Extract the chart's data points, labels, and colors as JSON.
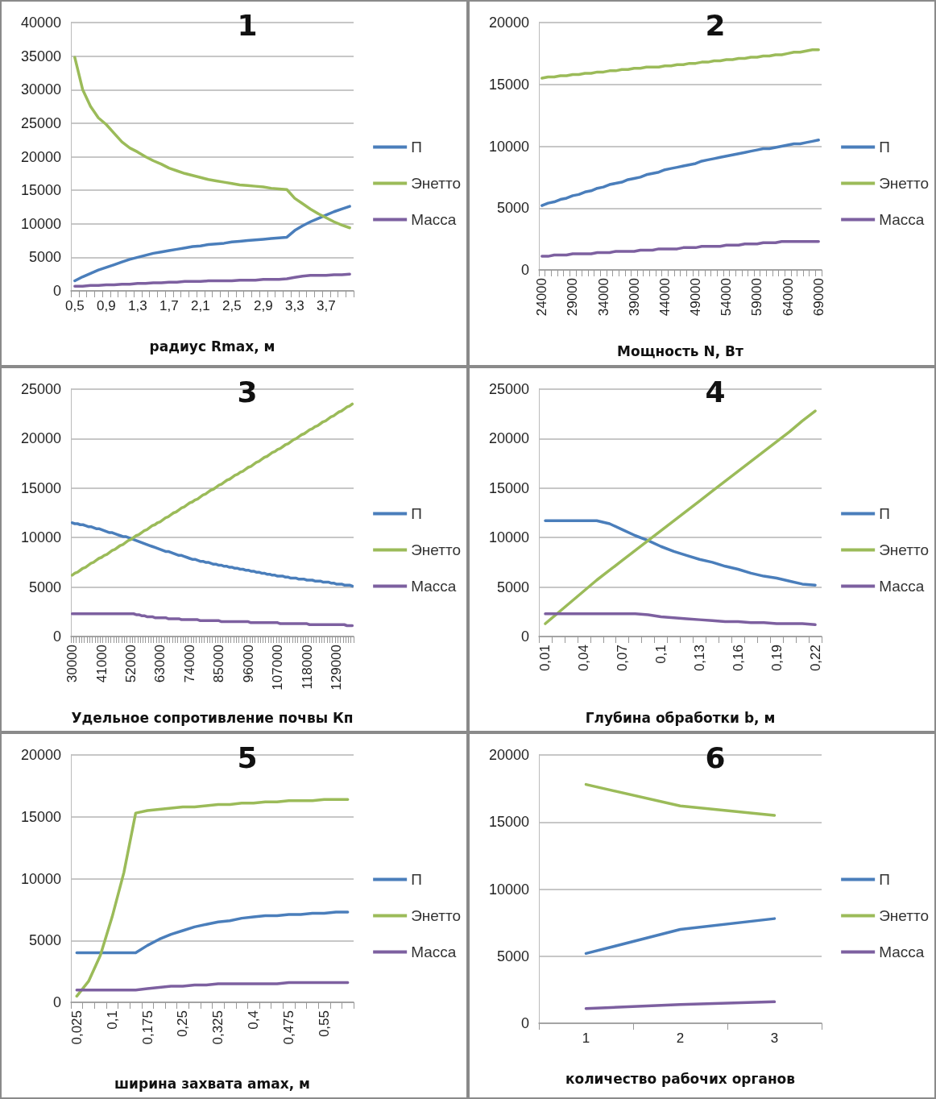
{
  "chart_data": [
    {
      "type": "line",
      "title": "1",
      "xlabel": "радиус Rmax, м",
      "categories": [
        "0,5",
        null,
        null,
        null,
        "0,9",
        null,
        null,
        null,
        "1,3",
        null,
        null,
        null,
        "1,7",
        null,
        null,
        null,
        "2,1",
        null,
        null,
        null,
        "2,5",
        null,
        null,
        null,
        "2,9",
        null,
        null,
        null,
        "3,3",
        null,
        null,
        null,
        "3,7",
        null,
        null,
        null
      ],
      "ylim": [
        0,
        40000
      ],
      "yticks": [
        0,
        5000,
        10000,
        15000,
        20000,
        25000,
        30000,
        35000,
        40000
      ],
      "grid": "y",
      "legend": "right",
      "marker": "none",
      "line_style": "solid",
      "series": [
        {
          "name": "П",
          "color": "#4a7ebb",
          "values": [
            1500,
            2100,
            2600,
            3100,
            3500,
            3900,
            4300,
            4700,
            5000,
            5300,
            5600,
            5800,
            6000,
            6200,
            6400,
            6600,
            6700,
            6900,
            7000,
            7100,
            7300,
            7400,
            7500,
            7600,
            7700,
            7800,
            7900,
            8000,
            9000,
            9700,
            10300,
            10800,
            11300,
            11800,
            12200,
            12600
          ]
        },
        {
          "name": "Энетто",
          "color": "#9bbb59",
          "values": [
            34800,
            30000,
            27500,
            25800,
            24800,
            23500,
            22200,
            21300,
            20700,
            20000,
            19400,
            18900,
            18300,
            17900,
            17500,
            17200,
            16900,
            16600,
            16400,
            16200,
            16000,
            15800,
            15700,
            15600,
            15500,
            15300,
            15200,
            15100,
            13800,
            13000,
            12200,
            11500,
            10900,
            10300,
            9800,
            9400
          ]
        },
        {
          "name": "Масса",
          "color": "#7d60a0",
          "values": [
            700,
            700,
            800,
            800,
            900,
            900,
            1000,
            1000,
            1100,
            1100,
            1200,
            1200,
            1300,
            1300,
            1400,
            1400,
            1400,
            1500,
            1500,
            1500,
            1500,
            1600,
            1600,
            1600,
            1700,
            1700,
            1700,
            1800,
            2000,
            2200,
            2300,
            2300,
            2300,
            2400,
            2400,
            2500
          ]
        }
      ]
    },
    {
      "type": "line",
      "title": "2",
      "xlabel": "Мощность N, Вт",
      "categories": [
        "24000",
        null,
        null,
        null,
        null,
        "29000",
        null,
        null,
        null,
        null,
        "34000",
        null,
        null,
        null,
        null,
        "39000",
        null,
        null,
        null,
        null,
        "44000",
        null,
        null,
        null,
        null,
        "49000",
        null,
        null,
        null,
        null,
        "54000",
        null,
        null,
        null,
        null,
        "59000",
        null,
        null,
        null,
        null,
        "64000",
        null,
        null,
        null,
        null,
        "69000"
      ],
      "ylim": [
        0,
        20000
      ],
      "yticks": [
        0,
        5000,
        10000,
        15000,
        20000
      ],
      "grid": "y",
      "legend": "right",
      "marker": "none",
      "line_style": "solid",
      "series": [
        {
          "name": "П",
          "color": "#4a7ebb",
          "values": [
            5200,
            5400,
            5500,
            5700,
            5800,
            6000,
            6100,
            6300,
            6400,
            6600,
            6700,
            6900,
            7000,
            7100,
            7300,
            7400,
            7500,
            7700,
            7800,
            7900,
            8100,
            8200,
            8300,
            8400,
            8500,
            8600,
            8800,
            8900,
            9000,
            9100,
            9200,
            9300,
            9400,
            9500,
            9600,
            9700,
            9800,
            9800,
            9900,
            10000,
            10100,
            10200,
            10200,
            10300,
            10400,
            10500
          ]
        },
        {
          "name": "Энетто",
          "color": "#9bbb59",
          "values": [
            15500,
            15600,
            15600,
            15700,
            15700,
            15800,
            15800,
            15900,
            15900,
            16000,
            16000,
            16100,
            16100,
            16200,
            16200,
            16300,
            16300,
            16400,
            16400,
            16400,
            16500,
            16500,
            16600,
            16600,
            16700,
            16700,
            16800,
            16800,
            16900,
            16900,
            17000,
            17000,
            17100,
            17100,
            17200,
            17200,
            17300,
            17300,
            17400,
            17400,
            17500,
            17600,
            17600,
            17700,
            17800,
            17800
          ]
        },
        {
          "name": "Масса",
          "color": "#7d60a0",
          "values": [
            1100,
            1100,
            1200,
            1200,
            1200,
            1300,
            1300,
            1300,
            1300,
            1400,
            1400,
            1400,
            1500,
            1500,
            1500,
            1500,
            1600,
            1600,
            1600,
            1700,
            1700,
            1700,
            1700,
            1800,
            1800,
            1800,
            1900,
            1900,
            1900,
            1900,
            2000,
            2000,
            2000,
            2100,
            2100,
            2100,
            2200,
            2200,
            2200,
            2300,
            2300,
            2300,
            2300,
            2300,
            2300,
            2300
          ]
        }
      ]
    },
    {
      "type": "line",
      "title": "3",
      "xlabel": "Удельное сопротивление почвы Кп",
      "categories": [
        "30000",
        null,
        null,
        null,
        null,
        null,
        null,
        null,
        null,
        null,
        null,
        "41000",
        null,
        null,
        null,
        null,
        null,
        null,
        null,
        null,
        null,
        null,
        "52000",
        null,
        null,
        null,
        null,
        null,
        null,
        null,
        null,
        null,
        null,
        "63000",
        null,
        null,
        null,
        null,
        null,
        null,
        null,
        null,
        null,
        null,
        "74000",
        null,
        null,
        null,
        null,
        null,
        null,
        null,
        null,
        null,
        null,
        "85000",
        null,
        null,
        null,
        null,
        null,
        null,
        null,
        null,
        null,
        null,
        "96000",
        null,
        null,
        null,
        null,
        null,
        null,
        null,
        null,
        null,
        null,
        "107000",
        null,
        null,
        null,
        null,
        null,
        null,
        null,
        null,
        null,
        null,
        "118000",
        null,
        null,
        null,
        null,
        null,
        null,
        null,
        null,
        null,
        null,
        "129000",
        null,
        null,
        null,
        null,
        null,
        null
      ],
      "ylim": [
        0,
        25000
      ],
      "yticks": [
        0,
        5000,
        10000,
        15000,
        20000,
        25000
      ],
      "grid": "y",
      "legend": "right",
      "marker": "none",
      "line_style": "solid",
      "series": [
        {
          "name": "П",
          "color": "#4a7ebb",
          "values": [
            11500,
            11400,
            11400,
            11300,
            11300,
            11200,
            11100,
            11100,
            11000,
            10900,
            10900,
            10800,
            10700,
            10600,
            10500,
            10500,
            10400,
            10300,
            10200,
            10100,
            10100,
            10000,
            9900,
            9800,
            9700,
            9600,
            9500,
            9400,
            9300,
            9200,
            9100,
            9000,
            8900,
            8800,
            8700,
            8600,
            8600,
            8500,
            8400,
            8300,
            8200,
            8200,
            8100,
            8000,
            7900,
            7800,
            7800,
            7700,
            7600,
            7600,
            7500,
            7500,
            7400,
            7300,
            7300,
            7200,
            7200,
            7100,
            7100,
            7000,
            7000,
            6900,
            6900,
            6800,
            6800,
            6700,
            6700,
            6600,
            6600,
            6500,
            6500,
            6400,
            6400,
            6300,
            6300,
            6200,
            6200,
            6100,
            6100,
            6100,
            6000,
            6000,
            5900,
            5900,
            5900,
            5800,
            5800,
            5800,
            5700,
            5700,
            5700,
            5600,
            5600,
            5600,
            5500,
            5500,
            5500,
            5400,
            5400,
            5300,
            5300,
            5300,
            5200,
            5200,
            5200,
            5100
          ]
        },
        {
          "name": "Энетто",
          "color": "#9bbb59",
          "values": [
            6200,
            6400,
            6500,
            6700,
            6900,
            7000,
            7200,
            7400,
            7500,
            7700,
            7900,
            8000,
            8200,
            8300,
            8500,
            8700,
            8800,
            9000,
            9200,
            9300,
            9500,
            9700,
            9800,
            10000,
            10200,
            10300,
            10500,
            10700,
            10800,
            11000,
            11200,
            11300,
            11500,
            11600,
            11800,
            12000,
            12100,
            12300,
            12500,
            12600,
            12800,
            13000,
            13100,
            13300,
            13500,
            13600,
            13800,
            13900,
            14100,
            14300,
            14400,
            14600,
            14800,
            14900,
            15100,
            15300,
            15400,
            15600,
            15800,
            15900,
            16100,
            16300,
            16400,
            16600,
            16700,
            16900,
            17100,
            17200,
            17400,
            17600,
            17700,
            17900,
            18100,
            18200,
            18400,
            18600,
            18700,
            18900,
            19000,
            19200,
            19400,
            19500,
            19700,
            19900,
            20000,
            20200,
            20400,
            20500,
            20700,
            20900,
            21000,
            21200,
            21300,
            21500,
            21700,
            21800,
            22000,
            22200,
            22300,
            22500,
            22700,
            22800,
            23000,
            23200,
            23300,
            23500
          ]
        },
        {
          "name": "Масса",
          "color": "#7d60a0",
          "values": [
            2300,
            2300,
            2300,
            2300,
            2300,
            2300,
            2300,
            2300,
            2300,
            2300,
            2300,
            2300,
            2300,
            2300,
            2300,
            2300,
            2300,
            2300,
            2300,
            2300,
            2300,
            2300,
            2300,
            2300,
            2200,
            2200,
            2100,
            2100,
            2000,
            2000,
            2000,
            1900,
            1900,
            1900,
            1900,
            1900,
            1800,
            1800,
            1800,
            1800,
            1800,
            1700,
            1700,
            1700,
            1700,
            1700,
            1700,
            1700,
            1600,
            1600,
            1600,
            1600,
            1600,
            1600,
            1600,
            1600,
            1500,
            1500,
            1500,
            1500,
            1500,
            1500,
            1500,
            1500,
            1500,
            1500,
            1500,
            1400,
            1400,
            1400,
            1400,
            1400,
            1400,
            1400,
            1400,
            1400,
            1400,
            1400,
            1300,
            1300,
            1300,
            1300,
            1300,
            1300,
            1300,
            1300,
            1300,
            1300,
            1300,
            1200,
            1200,
            1200,
            1200,
            1200,
            1200,
            1200,
            1200,
            1200,
            1200,
            1200,
            1200,
            1200,
            1200,
            1100,
            1100,
            1100
          ]
        }
      ]
    },
    {
      "type": "line",
      "title": "4",
      "xlabel": "Глубина обработки b, м",
      "categories": [
        "0,01",
        null,
        null,
        "0,04",
        null,
        null,
        "0,07",
        null,
        null,
        "0,1",
        null,
        null,
        "0,13",
        null,
        null,
        "0,16",
        null,
        null,
        "0,19",
        null,
        null,
        "0,22"
      ],
      "ylim": [
        0,
        25000
      ],
      "yticks": [
        0,
        5000,
        10000,
        15000,
        20000,
        25000
      ],
      "grid": "y",
      "legend": "right",
      "marker": "none",
      "line_style": "solid",
      "series": [
        {
          "name": "П",
          "color": "#4a7ebb",
          "values": [
            11700,
            11700,
            11700,
            11700,
            11700,
            11400,
            10800,
            10200,
            9700,
            9100,
            8600,
            8200,
            7800,
            7500,
            7100,
            6800,
            6400,
            6100,
            5900,
            5600,
            5300,
            5200
          ]
        },
        {
          "name": "Энетто",
          "color": "#9bbb59",
          "values": [
            1300,
            2400,
            3500,
            4600,
            5700,
            6700,
            7700,
            8700,
            9700,
            10700,
            11700,
            12700,
            13700,
            14700,
            15700,
            16700,
            17700,
            18700,
            19700,
            20700,
            21800,
            22800
          ]
        },
        {
          "name": "Масса",
          "color": "#7d60a0",
          "values": [
            2300,
            2300,
            2300,
            2300,
            2300,
            2300,
            2300,
            2300,
            2200,
            2000,
            1900,
            1800,
            1700,
            1600,
            1500,
            1500,
            1400,
            1400,
            1300,
            1300,
            1300,
            1200
          ]
        }
      ]
    },
    {
      "type": "line",
      "title": "5",
      "xlabel": "ширина захвата amax, м",
      "categories": [
        "0,025",
        null,
        null,
        "0,1",
        null,
        null,
        "0,175",
        null,
        null,
        "0,25",
        null,
        null,
        "0,325",
        null,
        null,
        "0,4",
        null,
        null,
        "0,475",
        null,
        null,
        "0,55",
        null,
        null
      ],
      "ylim": [
        0,
        20000
      ],
      "yticks": [
        0,
        5000,
        10000,
        15000,
        20000
      ],
      "grid": "y",
      "legend": "right",
      "marker": "none",
      "line_style": "solid",
      "series": [
        {
          "name": "П",
          "color": "#4a7ebb",
          "values": [
            4000,
            4000,
            4000,
            4000,
            4000,
            4000,
            4600,
            5100,
            5500,
            5800,
            6100,
            6300,
            6500,
            6600,
            6800,
            6900,
            7000,
            7000,
            7100,
            7100,
            7200,
            7200,
            7300,
            7300
          ]
        },
        {
          "name": "Энетто",
          "color": "#9bbb59",
          "values": [
            500,
            1700,
            3800,
            6900,
            10500,
            15300,
            15500,
            15600,
            15700,
            15800,
            15800,
            15900,
            16000,
            16000,
            16100,
            16100,
            16200,
            16200,
            16300,
            16300,
            16300,
            16400,
            16400,
            16400
          ]
        },
        {
          "name": "Масса",
          "color": "#7d60a0",
          "values": [
            1000,
            1000,
            1000,
            1000,
            1000,
            1000,
            1100,
            1200,
            1300,
            1300,
            1400,
            1400,
            1500,
            1500,
            1500,
            1500,
            1500,
            1500,
            1600,
            1600,
            1600,
            1600,
            1600,
            1600
          ]
        }
      ]
    },
    {
      "type": "line",
      "title": "6",
      "xlabel": "количество рабочих органов",
      "categories": [
        "1",
        "2",
        "3"
      ],
      "ylim": [
        0,
        20000
      ],
      "yticks": [
        0,
        5000,
        10000,
        15000,
        20000
      ],
      "grid": "y",
      "legend": "right",
      "marker": "none",
      "line_style": "solid",
      "series": [
        {
          "name": "П",
          "color": "#4a7ebb",
          "values": [
            5200,
            7000,
            7800
          ]
        },
        {
          "name": "Энетто",
          "color": "#9bbb59",
          "values": [
            17800,
            16200,
            15500
          ]
        },
        {
          "name": "Масса",
          "color": "#7d60a0",
          "values": [
            1100,
            1400,
            1600
          ]
        }
      ]
    }
  ]
}
